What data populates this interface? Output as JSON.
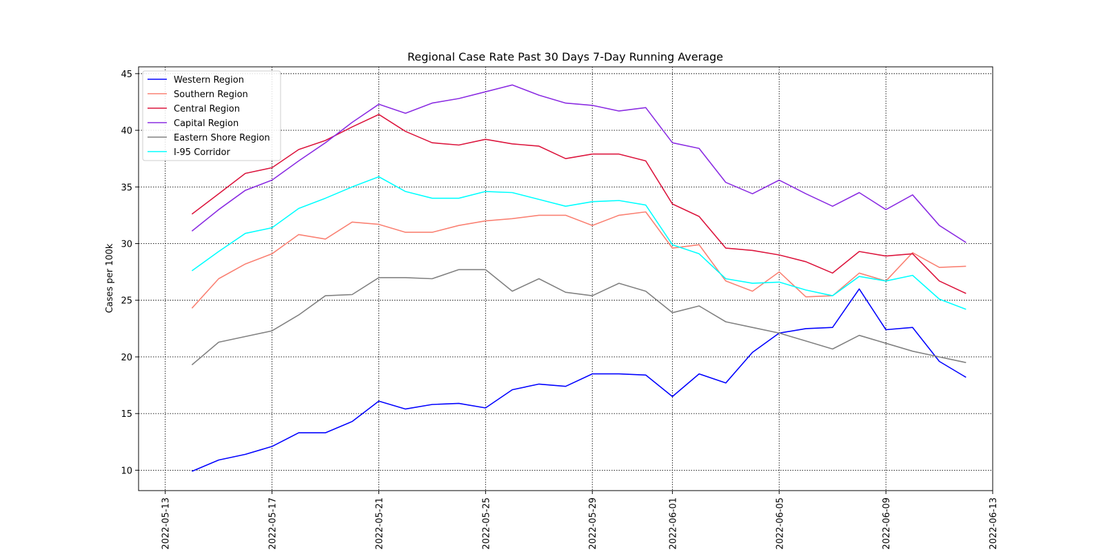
{
  "chart_data": {
    "type": "line",
    "title": "Regional Case Rate  Past 30 Days 7-Day Running Average",
    "xlabel": "",
    "ylabel": "Cases per 100k",
    "x_start": "2022-05-14",
    "x_end": "2022-06-12",
    "xlim": [
      "2022-05-12",
      "2022-06-13"
    ],
    "ylim": [
      8.2,
      45.6
    ],
    "yticks": [
      10,
      15,
      20,
      25,
      30,
      35,
      40,
      45
    ],
    "xticks": [
      "2022-05-13",
      "2022-05-17",
      "2022-05-21",
      "2022-05-25",
      "2022-05-29",
      "2022-06-01",
      "2022-06-05",
      "2022-06-09",
      "2022-06-13"
    ],
    "grid": true,
    "legend_position": "top-left",
    "series": [
      {
        "name": "Western Region",
        "color": "#0000ff",
        "values": [
          9.9,
          10.9,
          11.4,
          12.1,
          13.3,
          13.3,
          14.3,
          16.1,
          15.4,
          15.8,
          15.9,
          15.5,
          17.1,
          17.6,
          17.4,
          18.5,
          18.5,
          18.4,
          16.5,
          18.5,
          17.7,
          20.4,
          22.1,
          22.5,
          22.6,
          26.0,
          22.4,
          22.6,
          19.6,
          18.2
        ]
      },
      {
        "name": "Southern Region",
        "color": "#fa8072",
        "values": [
          24.3,
          26.9,
          28.2,
          29.1,
          30.8,
          30.4,
          31.9,
          31.7,
          31.0,
          31.0,
          31.6,
          32.0,
          32.2,
          32.5,
          32.5,
          31.6,
          32.5,
          32.8,
          29.6,
          29.9,
          26.7,
          25.8,
          27.5,
          25.3,
          25.4,
          27.4,
          26.7,
          29.2,
          27.9,
          28.0
        ]
      },
      {
        "name": "Central Region",
        "color": "#dc143c",
        "values": [
          32.6,
          34.4,
          36.2,
          36.7,
          38.3,
          39.1,
          40.3,
          41.4,
          39.9,
          38.9,
          38.7,
          39.2,
          38.8,
          38.6,
          37.5,
          37.9,
          37.9,
          37.3,
          33.5,
          32.4,
          29.6,
          29.4,
          29.0,
          28.4,
          27.4,
          29.3,
          28.9,
          29.1,
          26.7,
          25.6
        ]
      },
      {
        "name": "Capital Region",
        "color": "#8a2be2",
        "values": [
          31.1,
          33.0,
          34.7,
          35.6,
          37.3,
          38.9,
          40.7,
          42.3,
          41.5,
          42.4,
          42.8,
          43.4,
          44.0,
          43.1,
          42.4,
          42.2,
          41.7,
          42.0,
          38.9,
          38.4,
          35.4,
          34.4,
          35.6,
          34.4,
          33.3,
          34.5,
          33.0,
          34.3,
          31.6,
          30.1
        ]
      },
      {
        "name": "Eastern Shore Region",
        "color": "#808080",
        "values": [
          19.3,
          21.3,
          21.8,
          22.3,
          23.7,
          25.4,
          25.5,
          27.0,
          27.0,
          26.9,
          27.7,
          27.7,
          25.8,
          26.9,
          25.7,
          25.4,
          26.5,
          25.8,
          23.9,
          24.5,
          23.1,
          22.6,
          22.1,
          21.4,
          20.7,
          21.9,
          21.2,
          20.5,
          20.0,
          19.5
        ]
      },
      {
        "name": "I-95 Corridor",
        "color": "#00ffff",
        "values": [
          27.6,
          29.3,
          30.9,
          31.4,
          33.1,
          34.0,
          35.0,
          35.9,
          34.6,
          34.0,
          34.0,
          34.6,
          34.5,
          33.9,
          33.3,
          33.7,
          33.8,
          33.4,
          29.9,
          29.1,
          26.9,
          26.5,
          26.6,
          25.9,
          25.4,
          27.1,
          26.7,
          27.2,
          25.1,
          24.2
        ]
      }
    ]
  }
}
